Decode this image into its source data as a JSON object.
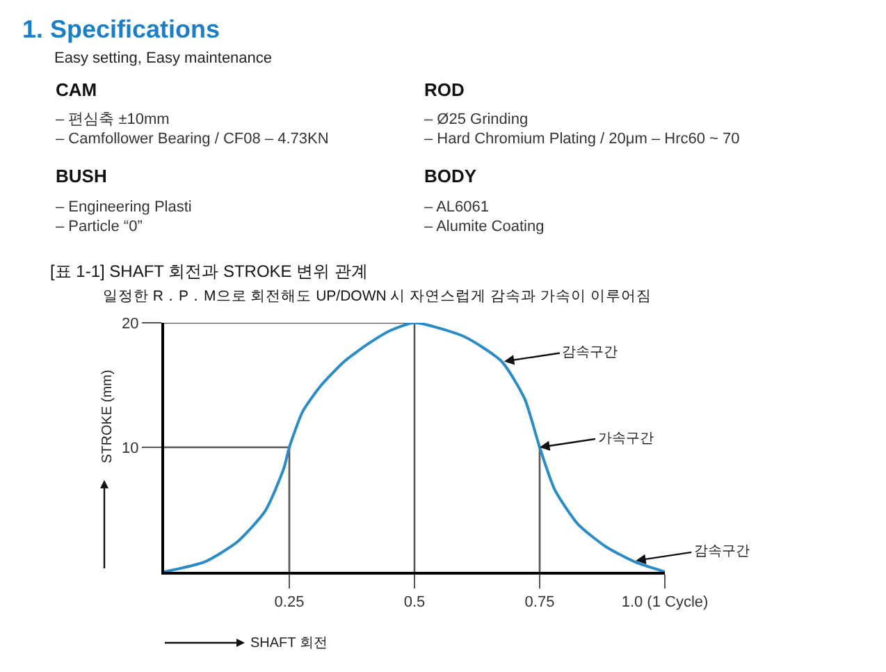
{
  "chart_data": {
    "type": "line",
    "title": "[표 1-1] SHAFT 회전과 STROKE 변위 관계",
    "subtitle": "일정한 R．P．M으로 회전해도 UP/DOWN 시 자연스럽게 감속과 가속이 이루어짐",
    "xlabel": "SHAFT 회전",
    "ylabel": "STROKE (mm)",
    "series": [
      {
        "color": "#2b8bc4",
        "x": [
          0,
          0.081,
          0.146,
          0.202,
          0.239,
          0.25,
          0.277,
          0.314,
          0.36,
          0.407,
          0.453,
          0.5,
          0.599,
          0.674,
          0.72,
          0.75,
          0.78,
          0.827,
          0.883,
          0.94,
          1.0
        ],
        "values": [
          0,
          0.8,
          2.4,
          4.9,
          8.3,
          10,
          12.9,
          15.0,
          16.9,
          18.3,
          19.4,
          20,
          18.9,
          16.9,
          13.9,
          10,
          6.6,
          3.8,
          2.0,
          0.8,
          0
        ]
      }
    ],
    "xlim": [
      0,
      1
    ],
    "ylim": [
      0,
      20
    ],
    "xticks": [
      0.25,
      0.5,
      0.75,
      {
        "value": 1.0,
        "label": "1.0 (1 Cycle)"
      }
    ],
    "yticks": [
      10,
      20
    ],
    "ref_lines": [
      {
        "axis": "x",
        "value": 0.25,
        "color": "#555555"
      },
      {
        "axis": "x",
        "value": 0.5,
        "color": "#555555"
      },
      {
        "axis": "x",
        "value": 0.75,
        "color": "#555555"
      },
      {
        "axis": "y",
        "value": 10,
        "color": "#555555"
      },
      {
        "axis": "y",
        "value": 20,
        "color": "#555555"
      }
    ],
    "annotations": [
      "1. Specifications",
      "Easy setting, Easy maintenance",
      "CAM",
      "– 편심축 ±10mm",
      "– Camfollower Bearing / CF08 – 4.73KN",
      "ROD",
      "– Ø25 Grinding",
      "– Hard Chromium Plating / 20μm – Hrc60 ~ 70",
      "BUSH",
      "– Engineering Plasti",
      "– Particle “0”",
      "BODY",
      "– AL6061",
      "– Alumite Coating",
      {
        "text": "감속구간",
        "x": 0.679,
        "y": 16.9
      },
      {
        "text": "가속구간",
        "x": 0.75,
        "y": 10
      },
      {
        "text": "감속구간",
        "x": 0.942,
        "y": 0.9
      }
    ],
    "grid": false,
    "marker": "none",
    "line_style": "solid"
  }
}
